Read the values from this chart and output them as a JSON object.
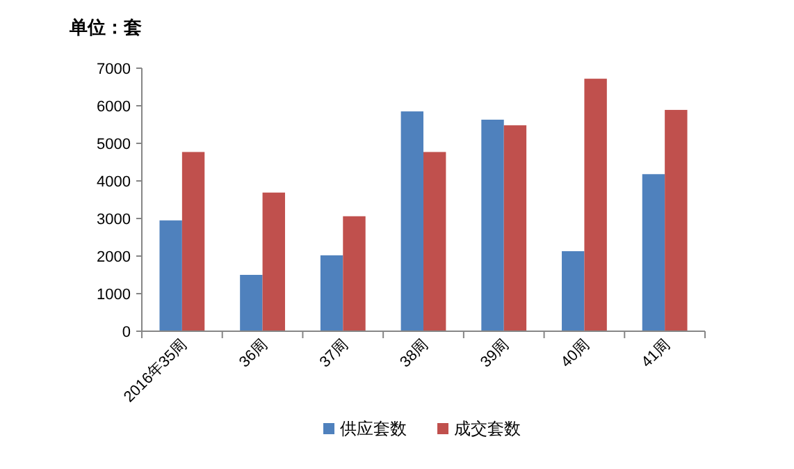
{
  "chart_data": {
    "type": "bar",
    "ylabel": "单位：套",
    "categories": [
      "2016年35周",
      "36周",
      "37周",
      "38周",
      "39周",
      "40周",
      "41周"
    ],
    "series": [
      {
        "name": "供应套数",
        "color": "#4f81bd",
        "values": [
          2950,
          1500,
          2020,
          5850,
          5630,
          2130,
          4180
        ]
      },
      {
        "name": "成交套数",
        "color": "#c0504d",
        "values": [
          4770,
          3690,
          3060,
          4770,
          5480,
          6720,
          5890
        ]
      }
    ],
    "ylim": [
      0,
      7000
    ],
    "yticks": [
      0,
      1000,
      2000,
      3000,
      4000,
      5000,
      6000,
      7000
    ],
    "grid": false,
    "legend": "bottom"
  }
}
